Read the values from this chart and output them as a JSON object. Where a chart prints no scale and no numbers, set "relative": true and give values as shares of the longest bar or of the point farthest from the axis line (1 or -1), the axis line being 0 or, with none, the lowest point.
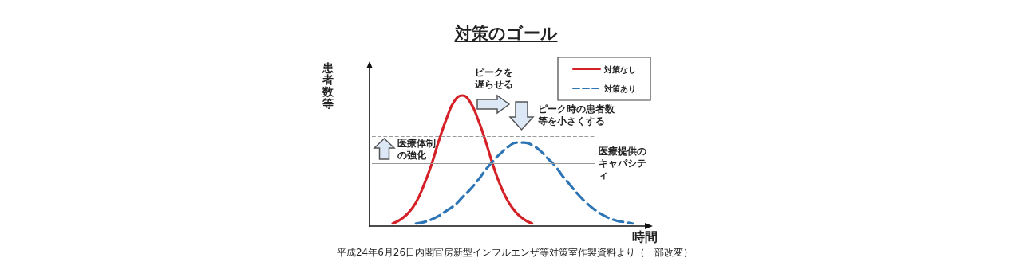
{
  "chart_data": {
    "type": "line",
    "relative": true,
    "title": "対策のゴール",
    "xlabel": "時間",
    "ylabel": "患者数等",
    "tick_labels": false,
    "legend": "top right",
    "marker": "none",
    "grid": false,
    "categories": [
      null,
      null,
      null,
      null,
      null,
      null,
      null,
      null,
      null,
      null,
      null,
      null,
      null,
      null,
      null,
      null,
      null,
      null,
      null,
      null,
      null,
      null,
      null,
      null,
      null,
      null,
      null,
      null,
      null,
      null,
      null,
      null,
      null,
      null,
      null,
      null,
      null
    ],
    "series": [
      {
        "name": "対策なし",
        "color": "#d42027",
        "line_style": "solid",
        "values": [
          null,
          null,
          null,
          0.02,
          0.05,
          0.1,
          0.18,
          0.31,
          0.47,
          0.66,
          0.83,
          0.96,
          1.0,
          0.95,
          0.82,
          0.65,
          0.46,
          0.3,
          0.18,
          0.1,
          0.05,
          0.02,
          null,
          null,
          null,
          null,
          null,
          null,
          null,
          null,
          null,
          null,
          null,
          null,
          null,
          null,
          null
        ]
      },
      {
        "name": "対策あり",
        "color": "#2e75b6",
        "line_style": "dashed",
        "values": [
          null,
          null,
          null,
          null,
          null,
          null,
          0.02,
          0.03,
          0.05,
          0.08,
          0.12,
          0.16,
          0.22,
          0.28,
          0.35,
          0.43,
          0.5,
          0.56,
          0.61,
          0.64,
          0.64,
          0.62,
          0.58,
          0.52,
          0.46,
          0.38,
          0.31,
          0.24,
          0.18,
          0.13,
          0.09,
          0.06,
          0.04,
          0.03,
          0.02,
          null,
          null
        ]
      }
    ],
    "ref_lines": [
      {
        "axis": "y",
        "value": 0.69,
        "label": null,
        "color": "#999999",
        "line_style": "dashed"
      },
      {
        "axis": "y",
        "value": 0.48,
        "label": "医療提供のキャパシティ",
        "color": "#999999",
        "line_style": "solid"
      }
    ],
    "annotations": [
      "ピークを遅らせる",
      "ピーク時の患者数等を小さくする",
      "医療体制の強化",
      "平成24年6月26日内閣官房新型インフルエンザ等対策室作製資料より（一部改変）"
    ]
  }
}
